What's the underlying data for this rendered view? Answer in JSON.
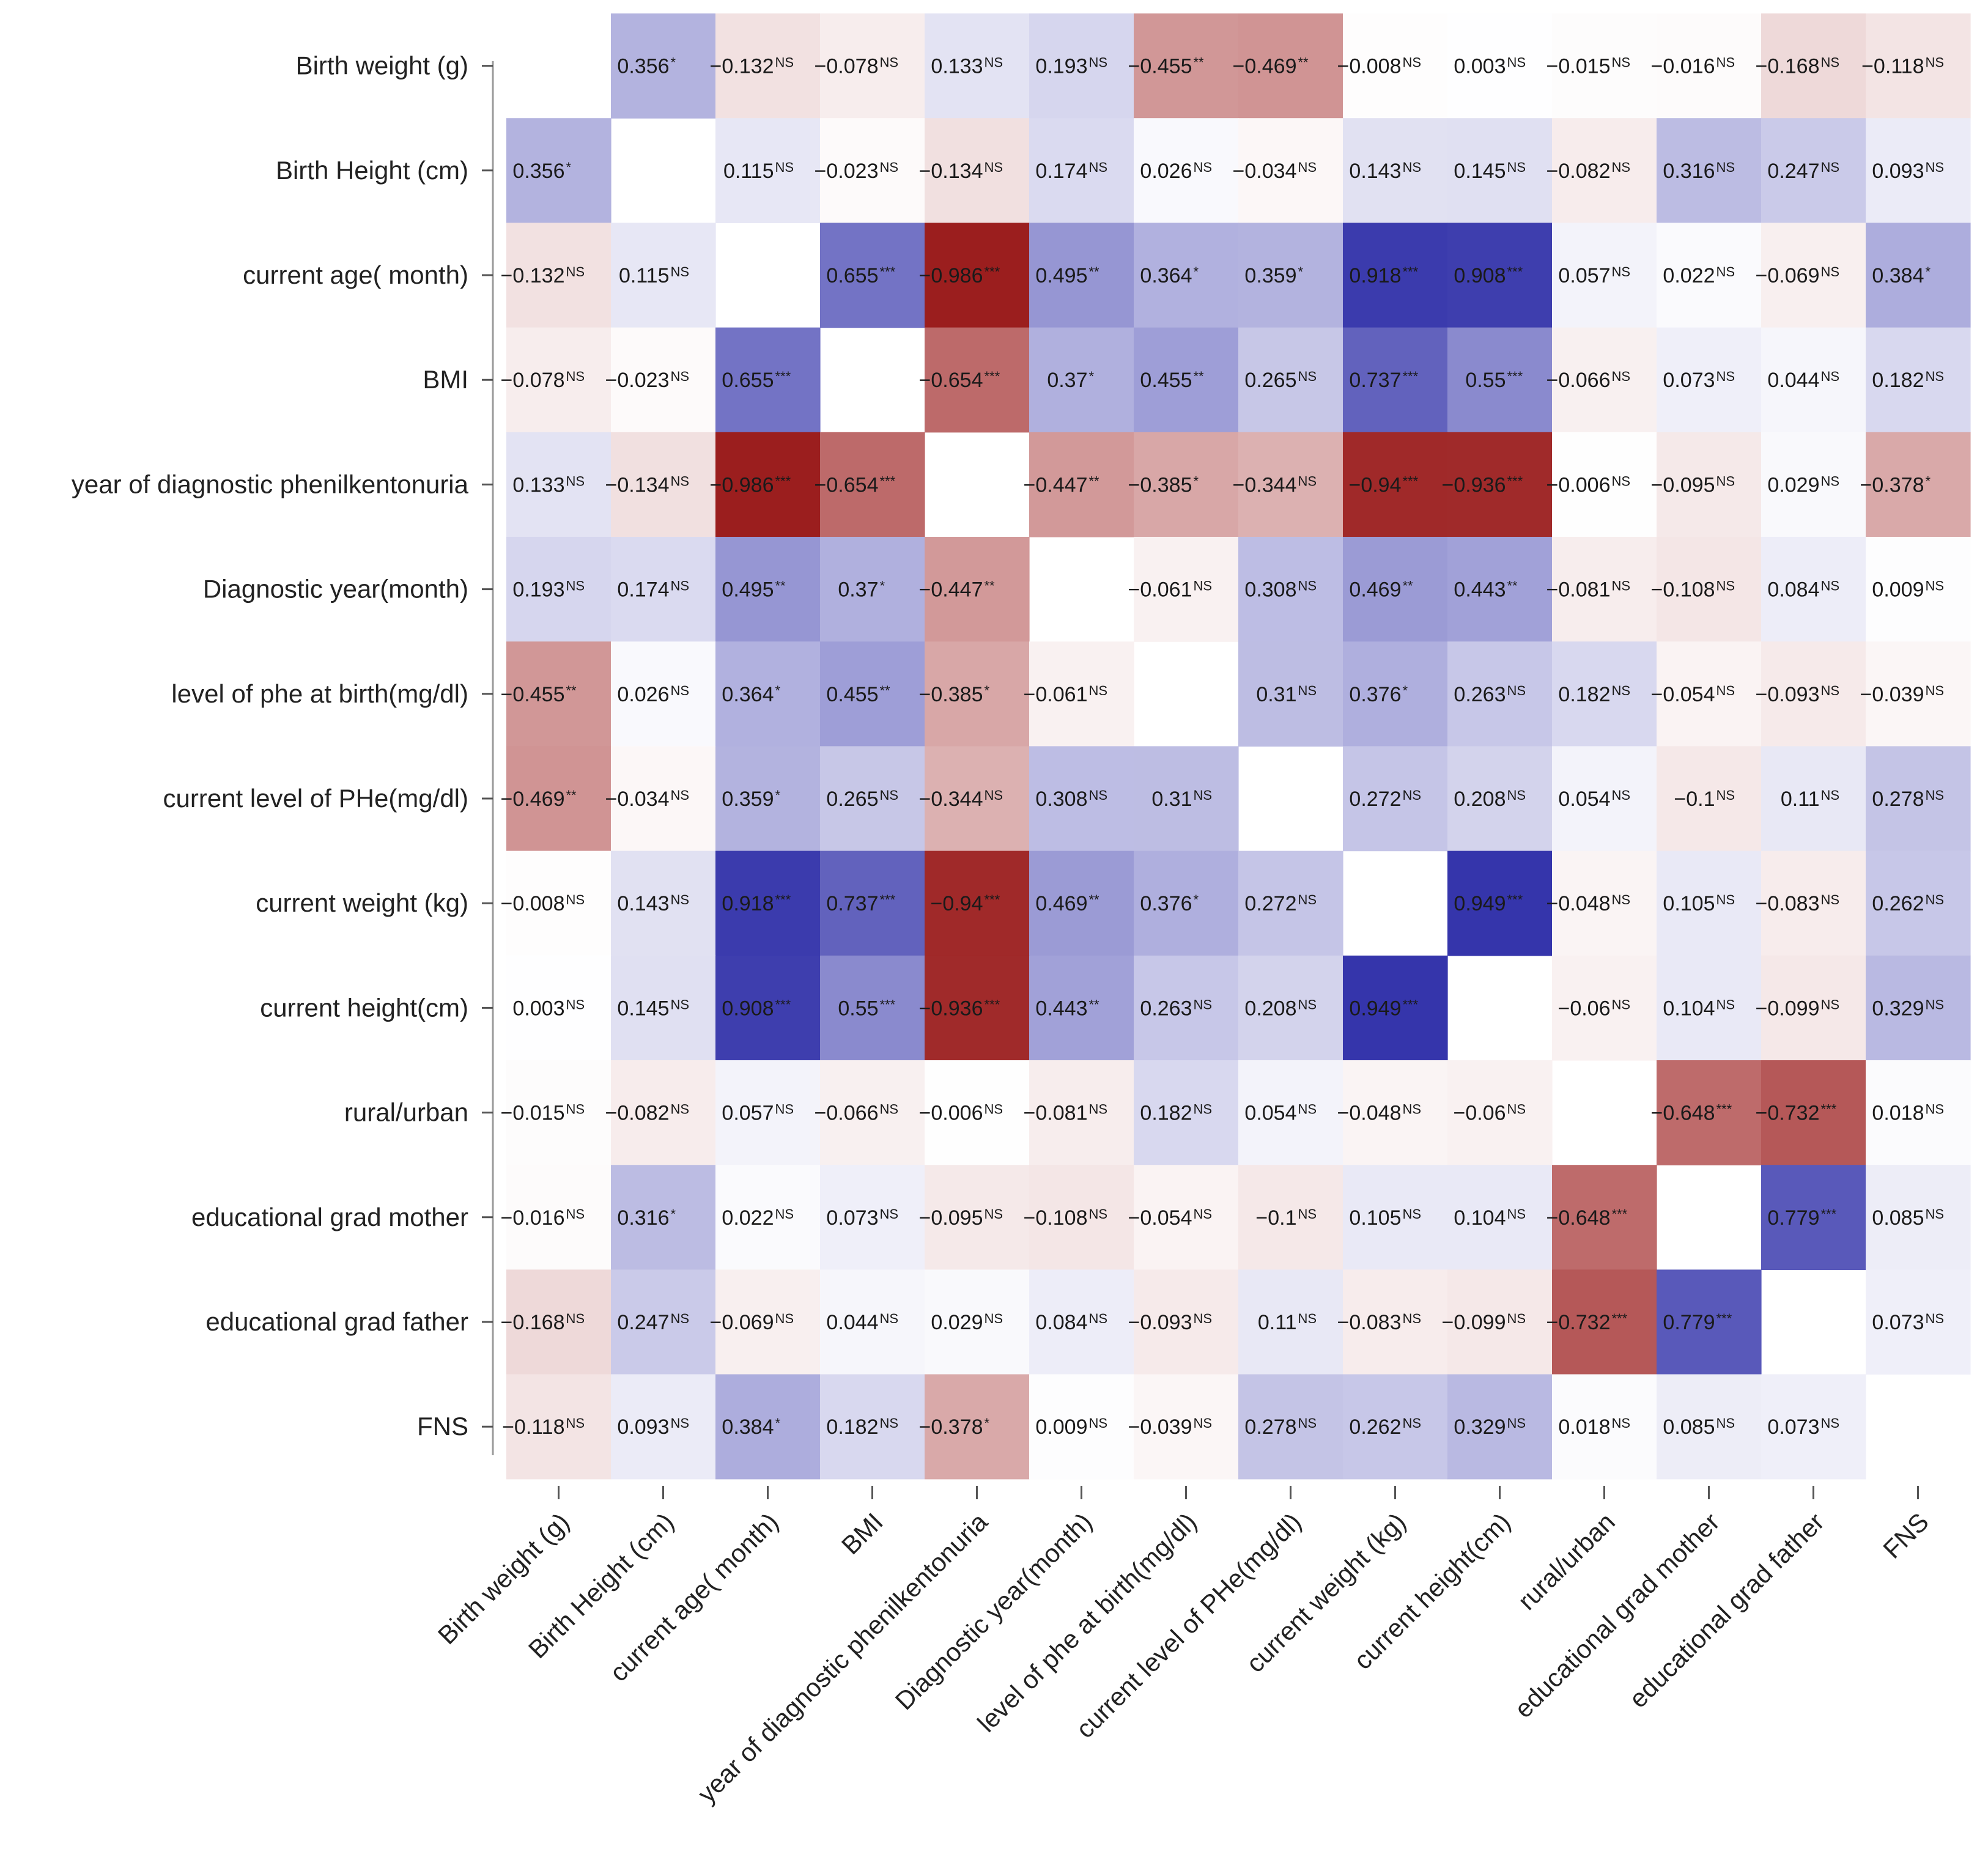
{
  "chart_data": {
    "type": "heatmap",
    "title": "",
    "variables": [
      "Birth weight (g)",
      "Birth Height (cm)",
      "current age( month)",
      "BMI",
      "year of diagnostic phenilkentonuria",
      "Diagnostic year(month)",
      "level of phe at birth(mg/dl)",
      "current level of PHe(mg/dl)",
      "current weight (kg)",
      "current height(cm)",
      "rural/urban",
      "educational grad mother",
      "educational grad father",
      "FNS"
    ],
    "value_labels": [
      [
        "",
        "0.356",
        "−0.132",
        "−0.078",
        "0.133",
        "0.193",
        "−0.455",
        "−0.469",
        "−0.008",
        "0.003",
        "−0.015",
        "−0.016",
        "−0.168",
        "−0.118"
      ],
      [
        "0.356",
        "",
        "0.115",
        "−0.023",
        "−0.134",
        "0.174",
        "0.026",
        "−0.034",
        "0.143",
        "0.145",
        "−0.082",
        "0.316",
        "0.247",
        "0.093"
      ],
      [
        "−0.132",
        "0.115",
        "",
        "0.655",
        "−0.986",
        "0.495",
        "0.364",
        "0.359",
        "0.918",
        "0.908",
        "0.057",
        "0.022",
        "−0.069",
        "0.384"
      ],
      [
        "−0.078",
        "−0.023",
        "0.655",
        "",
        "−0.654",
        "0.37",
        "0.455",
        "0.265",
        "0.737",
        "0.55",
        "−0.066",
        "0.073",
        "0.044",
        "0.182"
      ],
      [
        "0.133",
        "−0.134",
        "−0.986",
        "−0.654",
        "",
        "−0.447",
        "−0.385",
        "−0.344",
        "−0.94",
        "−0.936",
        "−0.006",
        "−0.095",
        "0.029",
        "−0.378"
      ],
      [
        "0.193",
        "0.174",
        "0.495",
        "0.37",
        "−0.447",
        "",
        "−0.061",
        "0.308",
        "0.469",
        "0.443",
        "−0.081",
        "−0.108",
        "0.084",
        "0.009"
      ],
      [
        "−0.455",
        "0.026",
        "0.364",
        "0.455",
        "−0.385",
        "−0.061",
        "",
        "0.31",
        "0.376",
        "0.263",
        "0.182",
        "−0.054",
        "−0.093",
        "−0.039"
      ],
      [
        "−0.469",
        "−0.034",
        "0.359",
        "0.265",
        "−0.344",
        "0.308",
        "0.31",
        "",
        "0.272",
        "0.208",
        "0.054",
        "−0.1",
        "0.11",
        "0.278"
      ],
      [
        "−0.008",
        "0.143",
        "0.918",
        "0.737",
        "−0.94",
        "0.469",
        "0.376",
        "0.272",
        "",
        "0.949",
        "−0.048",
        "0.105",
        "−0.083",
        "0.262"
      ],
      [
        "0.003",
        "0.145",
        "0.908",
        "0.55",
        "−0.936",
        "0.443",
        "0.263",
        "0.208",
        "0.949",
        "",
        "−0.06",
        "0.104",
        "−0.099",
        "0.329"
      ],
      [
        "−0.015",
        "−0.082",
        "0.057",
        "−0.066",
        "−0.006",
        "−0.081",
        "0.182",
        "0.054",
        "−0.048",
        "−0.06",
        "",
        "−0.648",
        "−0.732",
        "0.018"
      ],
      [
        "−0.016",
        "0.316",
        "0.022",
        "0.073",
        "−0.095",
        "−0.108",
        "−0.054",
        "−0.1",
        "0.105",
        "0.104",
        "−0.648",
        "",
        "0.779",
        "0.085"
      ],
      [
        "−0.168",
        "0.247",
        "−0.069",
        "0.044",
        "0.029",
        "0.084",
        "−0.093",
        "0.11",
        "−0.083",
        "−0.099",
        "−0.732",
        "0.779",
        "",
        "0.073"
      ],
      [
        "−0.118",
        "0.093",
        "0.384",
        "0.182",
        "−0.378",
        "0.009",
        "−0.039",
        "0.278",
        "0.262",
        "0.329",
        "0.018",
        "0.085",
        "0.073",
        ""
      ]
    ],
    "significance": [
      [
        "",
        "*",
        "NS",
        "NS",
        "NS",
        "NS",
        "**",
        "**",
        "NS",
        "NS",
        "NS",
        "NS",
        "NS",
        "NS"
      ],
      [
        "*",
        "",
        "NS",
        "NS",
        "NS",
        "NS",
        "NS",
        "NS",
        "NS",
        "NS",
        "NS",
        "NS",
        "NS",
        "NS"
      ],
      [
        "NS",
        "NS",
        "",
        "***",
        "***",
        "**",
        "*",
        "*",
        "***",
        "***",
        "NS",
        "NS",
        "NS",
        "*"
      ],
      [
        "NS",
        "NS",
        "***",
        "",
        "***",
        "*",
        "**",
        "NS",
        "***",
        "***",
        "NS",
        "NS",
        "NS",
        "NS"
      ],
      [
        "NS",
        "NS",
        "***",
        "***",
        "",
        "**",
        "*",
        "NS",
        "***",
        "***",
        "NS",
        "NS",
        "NS",
        "*"
      ],
      [
        "NS",
        "NS",
        "**",
        "*",
        "**",
        "",
        "NS",
        "NS",
        "**",
        "**",
        "NS",
        "NS",
        "NS",
        "NS"
      ],
      [
        "**",
        "NS",
        "*",
        "**",
        "*",
        "NS",
        "",
        "NS",
        "*",
        "NS",
        "NS",
        "NS",
        "NS",
        "NS"
      ],
      [
        "**",
        "NS",
        "*",
        "NS",
        "NS",
        "NS",
        "NS",
        "",
        "NS",
        "NS",
        "NS",
        "NS",
        "NS",
        "NS"
      ],
      [
        "NS",
        "NS",
        "***",
        "***",
        "***",
        "**",
        "*",
        "NS",
        "",
        "***",
        "NS",
        "NS",
        "NS",
        "NS"
      ],
      [
        "NS",
        "NS",
        "***",
        "***",
        "***",
        "**",
        "NS",
        "NS",
        "***",
        "",
        "NS",
        "NS",
        "NS",
        "NS"
      ],
      [
        "NS",
        "NS",
        "NS",
        "NS",
        "NS",
        "NS",
        "NS",
        "NS",
        "NS",
        "NS",
        "",
        "***",
        "***",
        "NS"
      ],
      [
        "NS",
        "*",
        "NS",
        "NS",
        "NS",
        "NS",
        "NS",
        "NS",
        "NS",
        "NS",
        "***",
        "",
        "***",
        "NS"
      ],
      [
        "NS",
        "NS",
        "NS",
        "NS",
        "NS",
        "NS",
        "NS",
        "NS",
        "NS",
        "NS",
        "***",
        "***",
        "",
        "NS"
      ],
      [
        "NS",
        "NS",
        "*",
        "NS",
        "*",
        "NS",
        "NS",
        "NS",
        "NS",
        "NS",
        "NS",
        "NS",
        "NS",
        ""
      ]
    ],
    "color_scale": {
      "range": [
        -1,
        1
      ],
      "negative_color": "#9a1b1b",
      "zero_color": "#ffffff",
      "positive_color": "#2a2aa6"
    }
  }
}
